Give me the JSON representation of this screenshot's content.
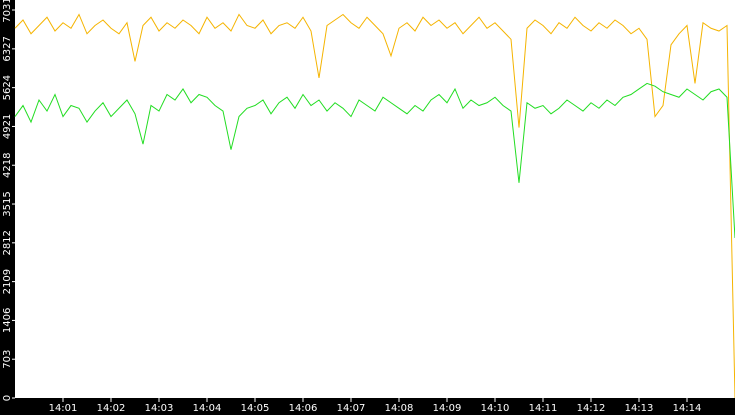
{
  "chart_data": {
    "type": "line",
    "xlim": [
      0,
      15
    ],
    "xticks": [
      {
        "value": 1,
        "label": "14:01"
      },
      {
        "value": 2,
        "label": "14:02"
      },
      {
        "value": 3,
        "label": "14:03"
      },
      {
        "value": 4,
        "label": "14:04"
      },
      {
        "value": 5,
        "label": "14:05"
      },
      {
        "value": 6,
        "label": "14:06"
      },
      {
        "value": 7,
        "label": "14:07"
      },
      {
        "value": 8,
        "label": "14:08"
      },
      {
        "value": 9,
        "label": "14:09"
      },
      {
        "value": 10,
        "label": "14:10"
      },
      {
        "value": 11,
        "label": "14:11"
      },
      {
        "value": 12,
        "label": "14:12"
      },
      {
        "value": 13,
        "label": "14:13"
      },
      {
        "value": 14,
        "label": "14:14"
      }
    ],
    "ylim": [
      0,
      7031
    ],
    "yticks": [
      0,
      703,
      1406,
      2109,
      2812,
      3515,
      4218,
      4921,
      5624,
      6327,
      7031
    ],
    "x": [
      0,
      0.1667,
      0.3333,
      0.5,
      0.6667,
      0.8333,
      1,
      1.1667,
      1.3333,
      1.5,
      1.6667,
      1.8333,
      2,
      2.1667,
      2.3333,
      2.5,
      2.6667,
      2.8333,
      3,
      3.1667,
      3.3333,
      3.5,
      3.6667,
      3.8333,
      4,
      4.1667,
      4.3333,
      4.5,
      4.6667,
      4.8333,
      5,
      5.1667,
      5.3333,
      5.5,
      5.6667,
      5.8333,
      6,
      6.1667,
      6.3333,
      6.5,
      6.6667,
      6.8333,
      7,
      7.1667,
      7.3333,
      7.5,
      7.6667,
      7.8333,
      8,
      8.1667,
      8.3333,
      8.5,
      8.6667,
      8.8333,
      9,
      9.1667,
      9.3333,
      9.5,
      9.6667,
      9.8333,
      10,
      10.1667,
      10.3333,
      10.5,
      10.6667,
      10.8333,
      11,
      11.1667,
      11.3333,
      11.5,
      11.6667,
      11.8333,
      12,
      12.1667,
      12.3333,
      12.5,
      12.6667,
      12.8333,
      13,
      13.1667,
      13.3333,
      13.5,
      13.6667,
      13.8333,
      14,
      14.1667,
      14.3333,
      14.5,
      14.6667,
      14.8333,
      15
    ],
    "series": [
      {
        "color": "#f5b400",
        "values": [
          6700,
          6850,
          6600,
          6750,
          6900,
          6650,
          6800,
          6700,
          6950,
          6600,
          6750,
          6850,
          6700,
          6600,
          6800,
          6100,
          6750,
          6900,
          6650,
          6800,
          6700,
          6850,
          6750,
          6600,
          6900,
          6700,
          6800,
          6650,
          6950,
          6750,
          6700,
          6850,
          6600,
          6750,
          6800,
          6700,
          6900,
          6650,
          5800,
          6750,
          6850,
          6950,
          6800,
          6700,
          6900,
          6750,
          6600,
          6200,
          6700,
          6800,
          6650,
          6900,
          6750,
          6850,
          6700,
          6800,
          6600,
          6750,
          6900,
          6700,
          6800,
          6650,
          6500,
          4900,
          6700,
          6850,
          6750,
          6600,
          6800,
          6700,
          6900,
          6750,
          6650,
          6800,
          6700,
          6850,
          6750,
          6600,
          6700,
          6500,
          5100,
          5300,
          6400,
          6600,
          6750,
          5700,
          6800,
          6700,
          6650,
          6750,
          0
        ]
      },
      {
        "color": "#22dd22",
        "values": [
          5100,
          5300,
          5000,
          5400,
          5200,
          5500,
          5100,
          5300,
          5250,
          5000,
          5200,
          5350,
          5100,
          5250,
          5400,
          5150,
          4600,
          5300,
          5200,
          5500,
          5400,
          5600,
          5350,
          5500,
          5450,
          5300,
          5200,
          4500,
          5100,
          5250,
          5300,
          5400,
          5150,
          5350,
          5450,
          5250,
          5500,
          5300,
          5400,
          5200,
          5350,
          5250,
          5100,
          5400,
          5300,
          5200,
          5450,
          5350,
          5250,
          5150,
          5300,
          5200,
          5400,
          5500,
          5350,
          5600,
          5250,
          5400,
          5300,
          5350,
          5450,
          5300,
          5200,
          3900,
          5350,
          5250,
          5300,
          5150,
          5250,
          5400,
          5300,
          5200,
          5350,
          5250,
          5400,
          5300,
          5450,
          5500,
          5600,
          5700,
          5650,
          5550,
          5500,
          5450,
          5600,
          5500,
          5400,
          5550,
          5600,
          5450,
          2900
        ]
      }
    ]
  }
}
